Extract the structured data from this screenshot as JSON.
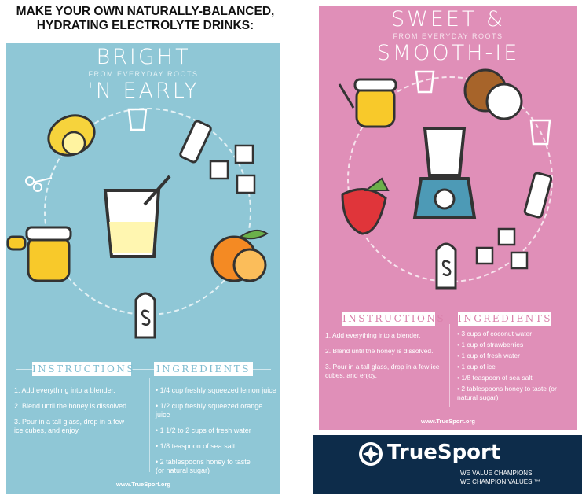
{
  "headline": "MAKE YOUR OWN NATURALLY-BALANCED, HYDRATING ELECTROLYTE DRINKS:",
  "panels": [
    {
      "title_line1": "BRIGHT",
      "title_line2": "'N EARLY",
      "subtitle": "FROM EVERYDAY ROOTS",
      "color": "#8fc7d6",
      "instructions_label": "INSTRUCTIONS",
      "ingredients_label": "INGREDIENTS",
      "instructions": [
        "1. Add everything into a blender.",
        "2. Blend until the honey is dissolved.",
        "3. Pour in a tall glass, drop in a few ice cubes, and enjoy."
      ],
      "ingredients": [
        "1/4 cup freshly squeezed lemon juice",
        "1/2 cup freshly squeezed orange juice",
        "1 1/2 to 2 cups of fresh water",
        "1/8 teaspoon of sea salt",
        "2 tablespoons honey to taste (or natural sugar)"
      ],
      "url": "www.TrueSport.org",
      "icons": [
        "lemon-icon",
        "measuring-cup-icon",
        "water-bottle-icon",
        "ice-cubes-icon",
        "measuring-spoons-icon",
        "glass-with-straw-icon",
        "orange-icon",
        "honey-jar-icon",
        "salt-shaker-icon"
      ]
    },
    {
      "title_line1": "SWEET &",
      "title_line2": "SMOOTH-IE",
      "subtitle": "FROM EVERYDAY ROOTS",
      "color": "#e08fb8",
      "instructions_label": "INSTRUCTIONS",
      "ingredients_label": "INGREDIENTS",
      "instructions": [
        "1. Add everything into a blender.",
        "2. Blend until the honey is dissolved.",
        "3. Pour in a tall glass, drop in a few ice cubes, and enjoy."
      ],
      "ingredients": [
        "3 cups of coconut water",
        "1 cup of strawberries",
        "1 cup of fresh water",
        "1 cup of ice",
        "1/8 teaspoon of sea salt",
        "2 tablespoons honey to taste (or natural sugar)"
      ],
      "url": "www.TrueSport.org",
      "icons": [
        "honey-jar-icon",
        "measuring-cup-icon",
        "coconut-icon",
        "glass-icon",
        "blender-icon",
        "strawberry-icon",
        "water-bottle-icon",
        "salt-shaker-icon",
        "ice-cubes-icon"
      ]
    }
  ],
  "footer": {
    "brand": "TrueSport",
    "tagline1": "WE VALUE CHAMPIONS.",
    "tagline2": "WE CHAMPION VALUES.™",
    "color": "#0d2c4a"
  }
}
